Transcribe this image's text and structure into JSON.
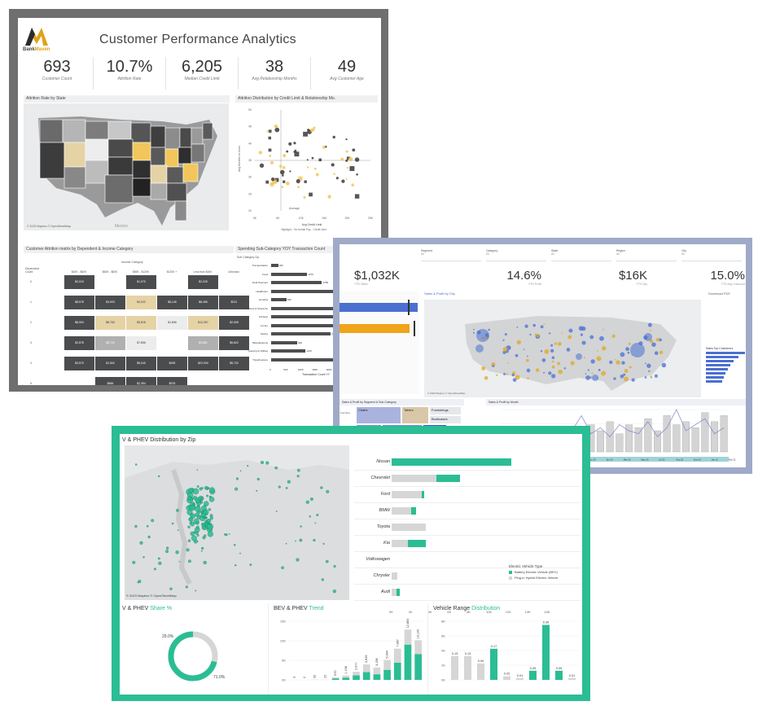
{
  "customer": {
    "title": "Customer Performance Analytics",
    "logo_text_a": "Bank",
    "logo_text_b": "Maven",
    "kpis": [
      {
        "value": "693",
        "label": "Customer Count"
      },
      {
        "value": "10.7%",
        "label": "Attrition Rate"
      },
      {
        "value": "6,205",
        "label": "Median Credit Limit"
      },
      {
        "value": "38",
        "label": "Avg Relationship Months"
      },
      {
        "value": "49",
        "label": "Avg Customer Age"
      }
    ],
    "map_title": "Attrition Rate by State",
    "map_credit": "© 2023 Mapbox © OpenStreetMap",
    "map_label": "Mexico",
    "scatter_title": "Attrition Distribution by Credit Limit & Relationship Mo.",
    "scatter_ylabel": "Avg Months on book",
    "scatter_xlabel": "Avg Credit Limit",
    "scatter_ticks_x": [
      "0K",
      "5K",
      "10K",
      "15K",
      "20K",
      "25K"
    ],
    "scatter_ticks_y": [
      "50",
      "45",
      "40",
      "35",
      "30",
      "25",
      "20"
    ],
    "scatter_note": "Average",
    "scatter_legend": "Highlight... No formal Pay... Credit Limit",
    "matrix_title": "Customer Attrition matrix by Dependent & Income Category",
    "matrix_col_header": "Income Category",
    "matrix_row_header": "Dependent Count",
    "matrix_cols": [
      "$40K - $60K",
      "$60K - $80K",
      "$80K - $120K",
      "$120K +",
      "Less than $40K",
      "Unknown"
    ],
    "matrix_rows": [
      "0",
      "1",
      "2",
      "3",
      "4",
      "5"
    ],
    "matrix_cells": [
      [
        "$2,010",
        "",
        "$1,970",
        "",
        "$2,025",
        ""
      ],
      [
        "$8,578",
        "$3,903",
        "$4,022",
        "$8,146",
        "$8,456",
        "$221"
      ],
      [
        "$8,904",
        "$8,763",
        "$3,516",
        "$1,896",
        "$12,267",
        "$2,908"
      ],
      [
        "$2,878",
        "$8,723",
        "$7,856",
        "",
        "$3,851",
        "$5,622"
      ],
      [
        "$3,570",
        "$1,502",
        "$5,040",
        "$495",
        "$22,940",
        "$5,702"
      ],
      [
        "",
        "$866",
        "$2,354",
        "$578",
        "",
        ""
      ]
    ],
    "spend_title": "Spending Sub-Category YOY Transaction Count",
    "spend_subhead": "Sub Category Gp.",
    "spend_xlabel": "Transaction Count YY",
    "spend_ticks": [
      "0",
      "500",
      "1000",
      "1500",
      "2000",
      "2500",
      "3000",
      "3500"
    ],
    "spend_categories": [
      {
        "name": "Transportation",
        "value": 252
      },
      {
        "name": "Food",
        "value": 1270
      },
      {
        "name": "Debt Payment",
        "value": 1789
      },
      {
        "name": "Healthcare",
        "value": 2205
      },
      {
        "name": "Housing",
        "value": 540
      },
      {
        "name": "Leisure & Tolerance",
        "value": 2491
      },
      {
        "name": "Lifestyle",
        "value": 2695
      },
      {
        "name": "Luxury",
        "value": 3315
      },
      {
        "name": "Saving",
        "value": 2099
      },
      {
        "name": "Miscellaneous",
        "value": 920
      },
      {
        "name": "Housing & Utilities",
        "value": 1210
      },
      {
        "name": "Travel/Leisure",
        "value": 2971
      }
    ]
  },
  "sales": {
    "filters": [
      "Segment",
      "Category",
      "State",
      "Region",
      "City"
    ],
    "filter_value": "All",
    "kpis": [
      {
        "value": "$1,032K",
        "label": "YTD Sales"
      },
      {
        "value": "14.6%",
        "label": "YTD Profit"
      },
      {
        "value": "$16K",
        "label": "YTD Qty"
      },
      {
        "value": "15.0%",
        "label": "YTD Avg. Discount"
      }
    ],
    "map_title": "Sales & Profit by City",
    "download_label": "Download PDF",
    "top_customers_title": "Sales Top Customers",
    "treemap_title": "Sales & Profit by Segment & Sub-Category",
    "treemap_rows": [
      "Furniture",
      "Office Supplies",
      "Technology"
    ],
    "treemap": [
      {
        "label": "Chairs"
      },
      {
        "label": "Tables"
      },
      {
        "label": "Furnishings"
      },
      {
        "label": "Bookcases"
      },
      {
        "label": "Storage"
      },
      {
        "label": "Binders"
      },
      {
        "label": "Labels & Paper"
      },
      {
        "label": "Phones"
      },
      {
        "label": "Copiers"
      },
      {
        "label": "Machines"
      }
    ],
    "trend_title": "Sales & Profit by Month",
    "months": [
      "Jan 19",
      "Mar 19",
      "May 19",
      "Jul 19",
      "Sep 19",
      "Nov 19",
      "Jan 20",
      "Mar 20",
      "May 20",
      "Jul 20",
      "Sep 20",
      "Nov 20",
      "Jan 21",
      "Mar 21"
    ],
    "bar_values": [
      3,
      4,
      5,
      4,
      6,
      7,
      5,
      8,
      6,
      9,
      7,
      10,
      6,
      9,
      8,
      11,
      7,
      12,
      9,
      10,
      8,
      13,
      10,
      12
    ],
    "line_values": [
      2,
      3,
      4,
      3,
      5,
      6,
      4,
      7,
      12,
      6,
      8,
      5,
      9,
      7,
      6,
      10,
      5,
      8,
      14,
      7,
      9,
      11,
      6,
      8
    ],
    "map_credit": "© 2023 Mapbox © OpenStreetMap"
  },
  "ev": {
    "map_title": "V & PHEV Distribution by Zip",
    "map_credit": "© 2023 Mapbox © OpenStreetMap",
    "brands": [
      {
        "name": "Nissan",
        "bev": 12400,
        "phev": 0
      },
      {
        "name": "Chevrolet",
        "bev": 2500,
        "phev": 4600
      },
      {
        "name": "Ford",
        "bev": 300,
        "phev": 3100
      },
      {
        "name": "BMW",
        "bev": 550,
        "phev": 2000
      },
      {
        "name": "Toyota",
        "bev": 0,
        "phev": 3500
      },
      {
        "name": "Kia",
        "bev": 1800,
        "phev": 1700
      },
      {
        "name": "Volkswagen",
        "bev": 0,
        "phev": 0
      },
      {
        "name": "Chrysler",
        "bev": 0,
        "phev": 600
      },
      {
        "name": "Audi",
        "bev": 300,
        "phev": 500
      }
    ],
    "bar_ticks": [
      "0K",
      "2K",
      "4K",
      "6K",
      "8K",
      "10K",
      "12K",
      "14K",
      "16K"
    ],
    "legend_title": "Electric Vehicle Type",
    "legend_items": [
      "Battery Electric Vehicle (BEV)",
      "Plug-in Hybrid Electric Vehicle"
    ],
    "share_title_a": "V & PHEV",
    "share_title_b": "Share %",
    "share_bev_pct": "71.0%",
    "share_phev_pct": "29.0%",
    "share_bev_fraction": 0.71,
    "trend_title_a": "BEV & PHEV",
    "trend_title_b": "Trend",
    "trend_ticks": [
      "15K",
      "10K",
      "5K",
      "0K"
    ],
    "trend_labels": [
      "3",
      "2",
      "32",
      "22",
      "670",
      "1,108",
      "2,077",
      "3,945",
      "3,158",
      "5,094",
      "7,987",
      "12,854",
      "10,142"
    ],
    "trend_totals": [
      3,
      2,
      32,
      22,
      670,
      1108,
      2077,
      3945,
      3158,
      5094,
      7987,
      12854,
      10142
    ],
    "trend_bev_share": [
      0.3,
      0.3,
      0.4,
      0.4,
      0.5,
      0.5,
      0.55,
      0.5,
      0.45,
      0.5,
      0.55,
      0.7,
      0.65
    ],
    "range_title_a": "Vehicle Range",
    "range_title_b": "Distribution",
    "range_ticks": [
      "8K",
      "6K",
      "4K",
      "2K",
      "0K"
    ],
    "range_labels": [
      "0.13",
      "0.13",
      "0.09",
      "0.17",
      "0.02",
      "0.01",
      "0.05",
      "0.30",
      "0.05",
      "0.01"
    ],
    "range_values": [
      0.13,
      0.13,
      0.09,
      0.17,
      0.02,
      0.01,
      0.05,
      0.3,
      0.05,
      0.01
    ]
  }
}
